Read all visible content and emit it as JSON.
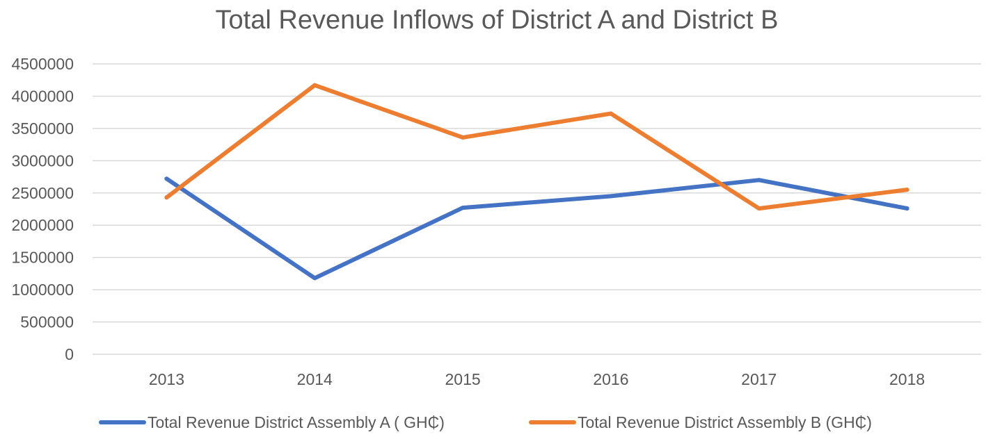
{
  "chart_data": {
    "type": "line",
    "title": "Total Revenue Inflows of District A and District B",
    "categories": [
      "2013",
      "2014",
      "2015",
      "2016",
      "2017",
      "2018"
    ],
    "y_ticks": [
      0,
      500000,
      1000000,
      1500000,
      2000000,
      2500000,
      3000000,
      3500000,
      4000000,
      4500000
    ],
    "ylim": [
      0,
      4500000
    ],
    "grid": true,
    "legend_position": "bottom",
    "xlabel": "",
    "ylabel": "",
    "series": [
      {
        "name": "Total Revenue District Assembly A ( GH₵)",
        "color": "#4472c4",
        "values": [
          2720000,
          1180000,
          2270000,
          2450000,
          2700000,
          2260000
        ]
      },
      {
        "name": "Total Revenue District Assembly B (GH₵)",
        "color": "#ed7d31",
        "values": [
          2430000,
          4170000,
          3360000,
          3730000,
          2260000,
          2550000
        ]
      }
    ]
  }
}
